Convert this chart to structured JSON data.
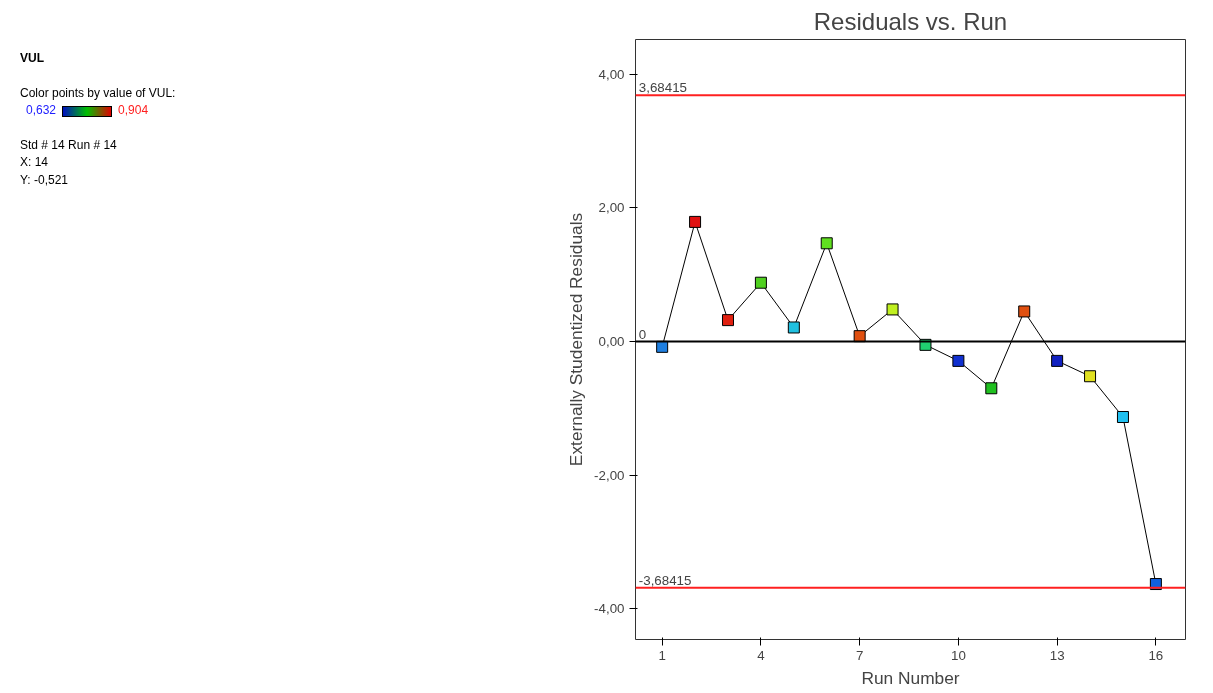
{
  "chart_data": {
    "type": "line",
    "title": "Residuals vs. Run",
    "xlabel": "Run Number",
    "ylabel": "Externally Studentized Residuals",
    "x": [
      1,
      2,
      3,
      4,
      5,
      6,
      7,
      8,
      9,
      10,
      11,
      12,
      13,
      14,
      15,
      16
    ],
    "series": [
      {
        "color": "#000000",
        "values": [
          -0.08,
          1.79,
          0.32,
          0.88,
          0.21,
          1.47,
          0.08,
          0.48,
          -0.05,
          -0.29,
          -0.7,
          0.45,
          -0.29,
          -0.52,
          -1.13,
          -3.63
        ],
        "colors": [
          "#1f7fe0",
          "#e01010",
          "#e02010",
          "#50d020",
          "#20c0e0",
          "#60e020",
          "#e05010",
          "#c0f020",
          "#20d070",
          "#1030d0",
          "#20c020",
          "#e05010",
          "#1020c0",
          "#e0e020",
          "#20c0f0",
          "#1060e0"
        ]
      }
    ],
    "marker": "square",
    "line_style": "solid",
    "grid": false,
    "xlim": [
      0.19,
      16.9
    ],
    "ylim": [
      -4.46,
      4.52
    ],
    "xticks": [
      1,
      4,
      7,
      10,
      13,
      16
    ],
    "yticks": [
      {
        "value": -4,
        "label": "-4,00"
      },
      {
        "value": -2,
        "label": "-2,00"
      },
      {
        "value": 0,
        "label": "0,00"
      },
      {
        "value": 2,
        "label": "2,00"
      },
      {
        "value": 4,
        "label": "4,00"
      }
    ],
    "ref_lines": [
      {
        "axis": "y",
        "value": 3.68415,
        "label": "3,68415",
        "color": "#ff2020"
      },
      {
        "axis": "y",
        "value": -3.68415,
        "label": "-3,68415",
        "color": "#ff2020"
      },
      {
        "axis": "y",
        "value": 0,
        "label": "0",
        "color": "#000000"
      }
    ],
    "annotations": [
      "VUL",
      "Color points by value of VUL:",
      "0,632",
      "0,904",
      "Std # 14 Run # 14",
      "X: 14",
      "Y: -0,521"
    ]
  }
}
